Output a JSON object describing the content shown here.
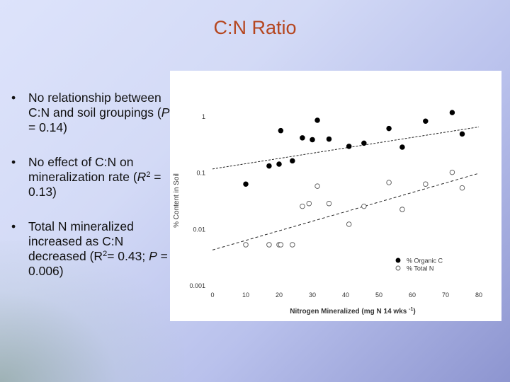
{
  "slide": {
    "title": "C:N Ratio",
    "bullets": [
      {
        "text_before": "No relationship between C:N and soil groupings (",
        "italic": "P",
        "text_after": " = 0.14)"
      },
      {
        "text_before": "No effect of C:N on mineralization rate (",
        "italic": "R",
        "superscript": "2",
        "text_after": " = 0.13)"
      },
      {
        "text_before": "Total N mineralized increased as C:N decreased (R",
        "superscript": "2",
        "text_mid": "= 0.43; ",
        "italic": "P",
        "text_after": " = 0.006)"
      }
    ]
  },
  "chart_data": {
    "type": "scatter",
    "xlabel": "Nitrogen Mineralized (mg N 14 wks",
    "xlabel_sup": "-1",
    "xlabel_end": ")",
    "ylabel": "% Content in Soil",
    "xlim": [
      0,
      80
    ],
    "x_ticks": [
      0,
      10,
      20,
      30,
      40,
      50,
      60,
      70,
      80
    ],
    "x_tick_labels": [
      "0",
      "10",
      "20",
      "30",
      "40",
      "50",
      "60",
      "70",
      "80"
    ],
    "y_scale": "log",
    "ylim": [
      0.001,
      2
    ],
    "y_ticks": [
      1,
      0.1,
      0.01,
      0.001
    ],
    "y_tick_labels": [
      "1",
      "0.1",
      "0.01",
      "0.001"
    ],
    "legend_position": "bottom-right",
    "series": [
      {
        "name": "% Organic C",
        "marker": "filled-circle",
        "points": [
          [
            10,
            0.062
          ],
          [
            17,
            0.13
          ],
          [
            20,
            0.14
          ],
          [
            20.5,
            0.55
          ],
          [
            24,
            0.16
          ],
          [
            27,
            0.41
          ],
          [
            30,
            0.38
          ],
          [
            31.5,
            0.84
          ],
          [
            35,
            0.39
          ],
          [
            41,
            0.29
          ],
          [
            45.5,
            0.33
          ],
          [
            53,
            0.6
          ],
          [
            57,
            0.28
          ],
          [
            64,
            0.81
          ],
          [
            72,
            1.15
          ],
          [
            75,
            0.48
          ]
        ],
        "trendline": {
          "x": [
            0,
            80
          ],
          "y": [
            0.115,
            0.64
          ]
        }
      },
      {
        "name": "% Total N",
        "marker": "open-circle",
        "points": [
          [
            10,
            0.0052
          ],
          [
            17,
            0.0052
          ],
          [
            20,
            0.0052
          ],
          [
            20.5,
            0.0052
          ],
          [
            24,
            0.0052
          ],
          [
            27,
            0.025
          ],
          [
            29,
            0.028
          ],
          [
            31.5,
            0.057
          ],
          [
            35,
            0.028
          ],
          [
            41,
            0.012
          ],
          [
            45.5,
            0.025
          ],
          [
            53,
            0.066
          ],
          [
            57,
            0.022
          ],
          [
            64,
            0.062
          ],
          [
            72,
            0.1
          ],
          [
            75,
            0.053
          ]
        ],
        "trendline": {
          "x": [
            0,
            80
          ],
          "y": [
            0.0042,
            0.096
          ]
        }
      }
    ]
  }
}
